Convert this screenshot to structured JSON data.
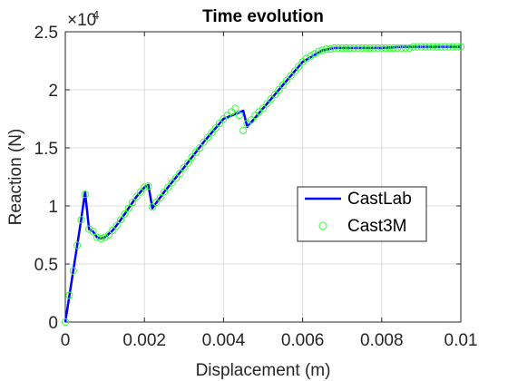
{
  "chart_data": {
    "type": "line",
    "title": "Time evolution",
    "xlabel": "Displacement (m)",
    "ylabel": "Reaction (N)",
    "y_exponent_label": "×10",
    "y_exponent_power": "4",
    "xlim": [
      0,
      0.01
    ],
    "ylim": [
      0,
      2.5
    ],
    "x_ticks": [
      0,
      0.002,
      0.004,
      0.006,
      0.008,
      0.01
    ],
    "x_tick_labels": [
      "0",
      "0.002",
      "0.004",
      "0.006",
      "0.008",
      "0.01"
    ],
    "y_ticks": [
      0,
      0.5,
      1,
      1.5,
      2,
      2.5
    ],
    "y_tick_labels": [
      "0",
      "0.5",
      "1",
      "1.5",
      "2",
      "2.5"
    ],
    "grid": true,
    "legend_position": "right",
    "colors": {
      "castlab": "#0000ff",
      "cast3m": "#33ff33",
      "axis": "#262626",
      "grid": "#dcdcdc"
    },
    "series": [
      {
        "name": "CastLab",
        "style": "line",
        "x": [
          0,
          0.0002,
          0.0004,
          0.0005,
          0.0006,
          0.0007,
          0.0008,
          0.0009,
          0.001,
          0.0012,
          0.0014,
          0.0016,
          0.0018,
          0.002,
          0.0021,
          0.0022,
          0.0025,
          0.003,
          0.0035,
          0.004,
          0.0045,
          0.0046,
          0.005,
          0.0055,
          0.006,
          0.0065,
          0.0068,
          0.007,
          0.0075,
          0.008,
          0.0085,
          0.009,
          0.0095,
          0.01
        ],
        "y": [
          0,
          0.44,
          0.88,
          1.12,
          0.8,
          0.78,
          0.73,
          0.72,
          0.73,
          0.79,
          0.88,
          0.98,
          1.08,
          1.16,
          1.18,
          0.98,
          1.12,
          1.33,
          1.55,
          1.75,
          1.82,
          1.68,
          1.84,
          2.04,
          2.24,
          2.34,
          2.36,
          2.36,
          2.36,
          2.36,
          2.37,
          2.37,
          2.37,
          2.37
        ]
      },
      {
        "name": "Cast3M",
        "style": "markers",
        "x": [
          0,
          0.0001,
          0.0002,
          0.0003,
          0.0004,
          0.0005,
          0.0006,
          0.0007,
          0.0008,
          0.0009,
          0.001,
          0.0011,
          0.0012,
          0.0013,
          0.0014,
          0.0015,
          0.0016,
          0.0017,
          0.0018,
          0.0019,
          0.002,
          0.0021,
          0.0022,
          0.0023,
          0.0024,
          0.0025,
          0.0026,
          0.0027,
          0.0028,
          0.0029,
          0.003,
          0.0031,
          0.0032,
          0.0033,
          0.0034,
          0.0035,
          0.0036,
          0.0037,
          0.0038,
          0.0039,
          0.004,
          0.0041,
          0.0042,
          0.0043,
          0.0044,
          0.0045,
          0.0046,
          0.0047,
          0.0048,
          0.0049,
          0.005,
          0.0051,
          0.0052,
          0.0053,
          0.0054,
          0.0055,
          0.0056,
          0.0057,
          0.0058,
          0.0059,
          0.006,
          0.0061,
          0.0062,
          0.0063,
          0.0064,
          0.0065,
          0.0066,
          0.0067,
          0.0068,
          0.0069,
          0.007,
          0.0071,
          0.0072,
          0.0073,
          0.0074,
          0.0075,
          0.0076,
          0.0077,
          0.0078,
          0.0079,
          0.008,
          0.0081,
          0.0082,
          0.0083,
          0.0084,
          0.0085,
          0.0086,
          0.0087,
          0.0088,
          0.0089,
          0.009,
          0.0091,
          0.0092,
          0.0093,
          0.0094,
          0.0095,
          0.0096,
          0.0097,
          0.0098,
          0.0099,
          0.01
        ],
        "y": [
          0,
          0.23,
          0.44,
          0.66,
          0.88,
          1.1,
          0.8,
          0.78,
          0.73,
          0.72,
          0.73,
          0.75,
          0.79,
          0.83,
          0.88,
          0.93,
          0.98,
          1.03,
          1.08,
          1.12,
          1.16,
          1.17,
          0.99,
          1.03,
          1.07,
          1.12,
          1.16,
          1.2,
          1.24,
          1.28,
          1.33,
          1.37,
          1.42,
          1.46,
          1.5,
          1.55,
          1.59,
          1.63,
          1.67,
          1.71,
          1.75,
          1.78,
          1.81,
          1.84,
          1.78,
          1.65,
          1.71,
          1.74,
          1.78,
          1.81,
          1.84,
          1.88,
          1.92,
          1.96,
          2.0,
          2.04,
          2.08,
          2.12,
          2.16,
          2.2,
          2.24,
          2.27,
          2.29,
          2.31,
          2.33,
          2.34,
          2.35,
          2.35,
          2.36,
          2.36,
          2.36,
          2.36,
          2.36,
          2.36,
          2.36,
          2.36,
          2.36,
          2.36,
          2.36,
          2.36,
          2.36,
          2.36,
          2.36,
          2.36,
          2.36,
          2.36,
          2.36,
          2.36,
          2.37,
          2.37,
          2.37,
          2.37,
          2.37,
          2.37,
          2.37,
          2.37,
          2.37,
          2.37,
          2.37,
          2.37,
          2.37
        ]
      }
    ]
  }
}
